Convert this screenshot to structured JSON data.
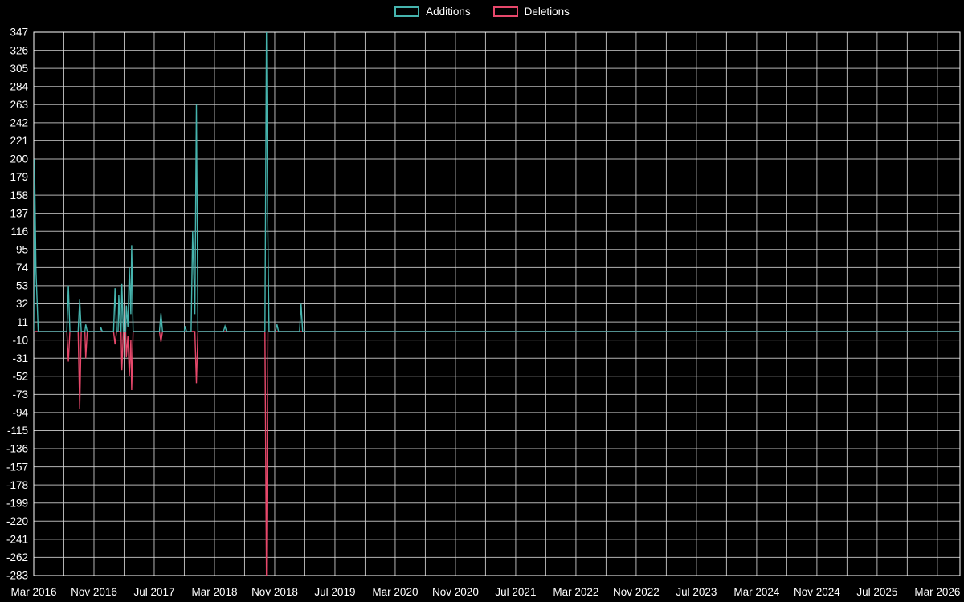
{
  "chart_data": {
    "type": "line",
    "title": "",
    "xlabel": "",
    "ylabel": "",
    "background_color": "#000000",
    "grid": true,
    "grid_color": "#d4d4d4",
    "axis_color": "#ffffff",
    "text_color": "#ffffff",
    "legend_position": "top-center",
    "x_unit": "months since Mar 2016",
    "xlim": [
      0,
      123
    ],
    "ylim": [
      -283,
      347
    ],
    "y_tick_step": 21,
    "x_minor_grid_step_months": 4,
    "x_grid_start": 0,
    "x_grid_end": 120,
    "y_ticks": [
      347,
      326,
      305,
      284,
      263,
      242,
      221,
      200,
      179,
      158,
      137,
      116,
      95,
      74,
      53,
      32,
      11,
      -10,
      -31,
      -52,
      -73,
      -94,
      -115,
      -136,
      -157,
      -178,
      -199,
      -220,
      -241,
      -262,
      -283
    ],
    "x_ticks": [
      {
        "month": 0,
        "label": "Mar 2016"
      },
      {
        "month": 8,
        "label": "Nov 2016"
      },
      {
        "month": 16,
        "label": "Jul 2017"
      },
      {
        "month": 24,
        "label": "Mar 2018"
      },
      {
        "month": 32,
        "label": "Nov 2018"
      },
      {
        "month": 40,
        "label": "Jul 2019"
      },
      {
        "month": 48,
        "label": "Mar 2020"
      },
      {
        "month": 56,
        "label": "Nov 2020"
      },
      {
        "month": 64,
        "label": "Jul 2021"
      },
      {
        "month": 72,
        "label": "Mar 2022"
      },
      {
        "month": 80,
        "label": "Nov 2022"
      },
      {
        "month": 88,
        "label": "Jul 2023"
      },
      {
        "month": 96,
        "label": "Mar 2024"
      },
      {
        "month": 104,
        "label": "Nov 2024"
      },
      {
        "month": 112,
        "label": "Jul 2025"
      },
      {
        "month": 120,
        "label": "Mar 2026"
      }
    ],
    "series": [
      {
        "name": "Additions",
        "color": "#46b4ae",
        "points": [
          [
            0,
            0
          ],
          [
            0.1,
            200
          ],
          [
            0.3,
            70
          ],
          [
            0.6,
            0
          ],
          [
            4.4,
            0
          ],
          [
            4.6,
            53
          ],
          [
            4.8,
            0
          ],
          [
            5.9,
            0
          ],
          [
            6.1,
            37
          ],
          [
            6.3,
            0
          ],
          [
            6.8,
            0
          ],
          [
            6.9,
            8
          ],
          [
            7.1,
            0
          ],
          [
            8.8,
            0
          ],
          [
            8.9,
            5
          ],
          [
            9.1,
            0
          ],
          [
            10.6,
            0
          ],
          [
            10.8,
            50
          ],
          [
            11.0,
            0
          ],
          [
            11.2,
            0
          ],
          [
            11.3,
            42
          ],
          [
            11.5,
            0
          ],
          [
            11.6,
            0
          ],
          [
            11.7,
            55
          ],
          [
            11.9,
            0
          ],
          [
            12.2,
            0
          ],
          [
            12.3,
            30
          ],
          [
            12.5,
            5
          ],
          [
            12.7,
            74
          ],
          [
            12.9,
            20
          ],
          [
            13.0,
            100
          ],
          [
            13.2,
            0
          ],
          [
            16.7,
            0
          ],
          [
            16.9,
            21
          ],
          [
            17.1,
            0
          ],
          [
            20.0,
            0
          ],
          [
            20.1,
            6
          ],
          [
            20.3,
            0
          ],
          [
            20.9,
            0
          ],
          [
            21.1,
            116
          ],
          [
            21.4,
            20
          ],
          [
            21.6,
            263
          ],
          [
            21.8,
            0
          ],
          [
            25.2,
            0
          ],
          [
            25.4,
            6
          ],
          [
            25.6,
            0
          ],
          [
            30.7,
            0
          ],
          [
            30.9,
            347
          ],
          [
            31.05,
            140
          ],
          [
            31.25,
            0
          ],
          [
            32.1,
            0
          ],
          [
            32.3,
            8
          ],
          [
            32.5,
            0
          ],
          [
            35.3,
            0
          ],
          [
            35.5,
            32
          ],
          [
            35.7,
            0
          ],
          [
            123,
            0
          ]
        ]
      },
      {
        "name": "Deletions",
        "color": "#e7486b",
        "points": [
          [
            0,
            0
          ],
          [
            4.4,
            0
          ],
          [
            4.6,
            -35
          ],
          [
            4.8,
            0
          ],
          [
            5.9,
            0
          ],
          [
            6.1,
            -90
          ],
          [
            6.3,
            0
          ],
          [
            6.8,
            0
          ],
          [
            6.9,
            -31
          ],
          [
            7.1,
            0
          ],
          [
            10.6,
            0
          ],
          [
            10.8,
            -15
          ],
          [
            11.0,
            0
          ],
          [
            11.6,
            0
          ],
          [
            11.7,
            -45
          ],
          [
            11.9,
            0
          ],
          [
            12.2,
            0
          ],
          [
            12.3,
            -30
          ],
          [
            12.5,
            -5
          ],
          [
            12.7,
            -52
          ],
          [
            12.9,
            -10
          ],
          [
            13.0,
            -68
          ],
          [
            13.2,
            0
          ],
          [
            16.7,
            0
          ],
          [
            16.9,
            -12
          ],
          [
            17.1,
            0
          ],
          [
            21.4,
            0
          ],
          [
            21.6,
            -60
          ],
          [
            21.8,
            0
          ],
          [
            30.7,
            0
          ],
          [
            30.9,
            -283
          ],
          [
            31.1,
            0
          ],
          [
            123,
            0
          ]
        ]
      }
    ]
  }
}
